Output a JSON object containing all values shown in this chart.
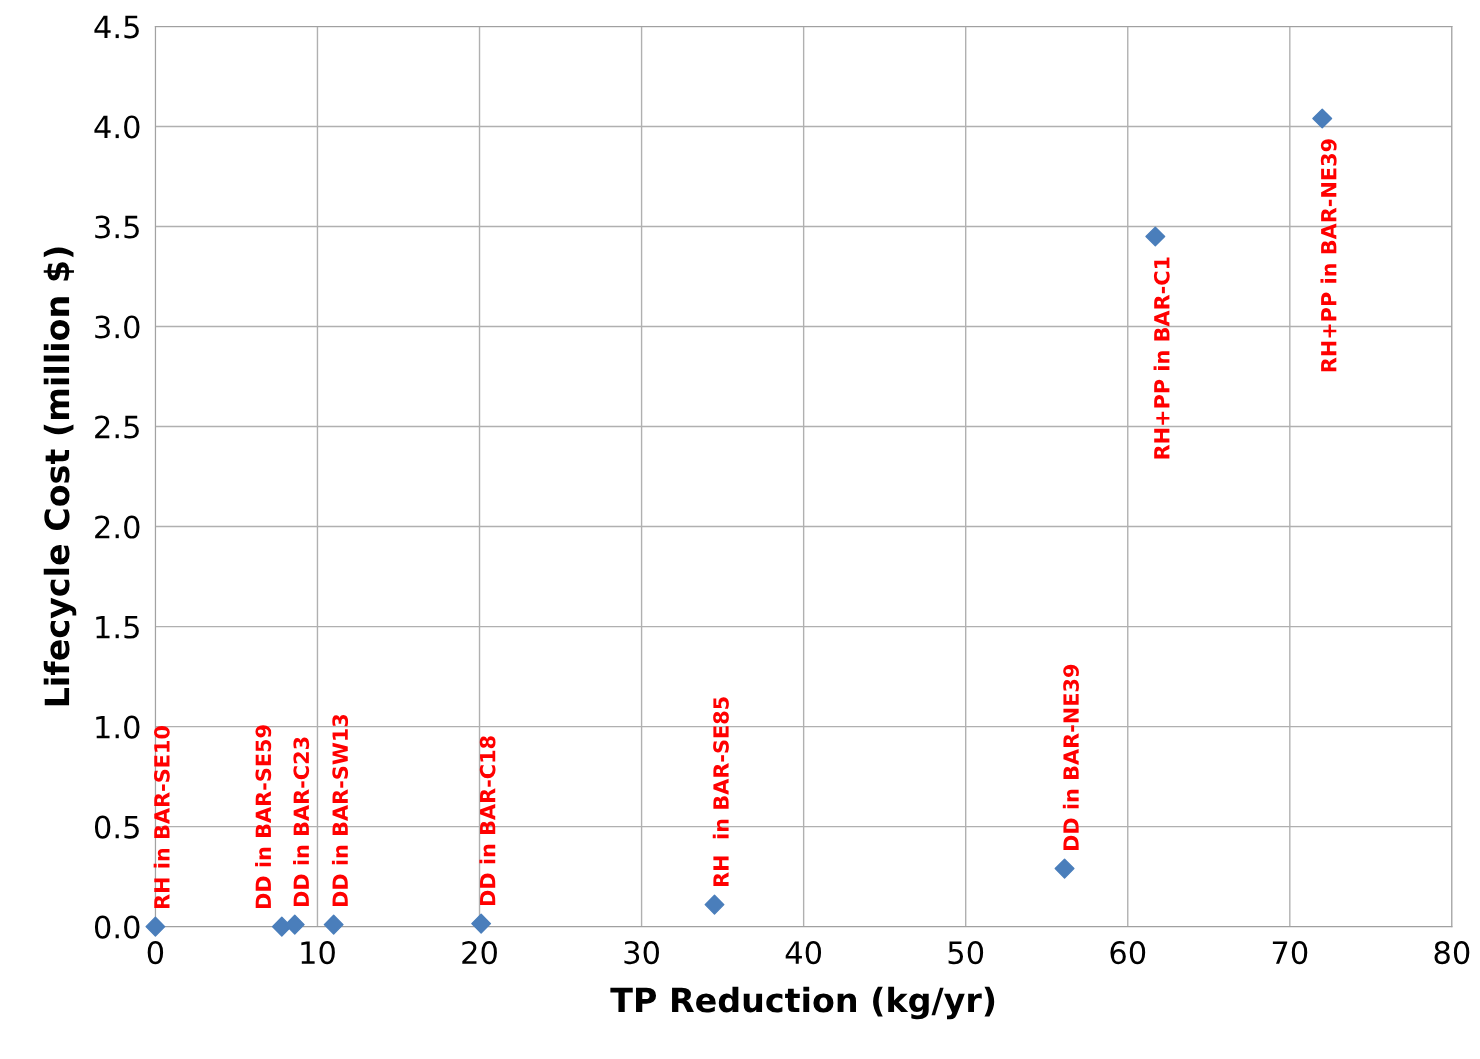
{
  "chart_data": {
    "type": "scatter",
    "xlabel": "TP Reduction (kg/yr)",
    "ylabel": "Lifecycle Cost (million $)",
    "x": [
      0,
      7.8,
      8.6,
      11.0,
      20.1,
      34.5,
      56.1,
      61.7,
      72.0
    ],
    "series": [
      {
        "color": "#4a7ebb",
        "values": [
          0,
          0,
          0.01,
          0.01,
          0.015,
          0.11,
          0.29,
          3.45,
          4.04
        ]
      }
    ],
    "marker": "diamond",
    "grid": true,
    "legend": false,
    "xlim": [
      0,
      80
    ],
    "xticks": [
      0,
      10,
      20,
      30,
      40,
      50,
      60,
      70,
      80
    ],
    "ylim": [
      0,
      4.5
    ],
    "yticks": [
      {
        "value": 0,
        "label": "0.0"
      },
      {
        "value": 0.5,
        "label": "0.5"
      },
      {
        "value": 1,
        "label": "1.0"
      },
      {
        "value": 1.5,
        "label": "1.5"
      },
      {
        "value": 2,
        "label": "2.0"
      },
      {
        "value": 2.5,
        "label": "2.5"
      },
      {
        "value": 3,
        "label": "3.0"
      },
      {
        "value": 3.5,
        "label": "3.5"
      },
      {
        "value": 4,
        "label": "4.0"
      },
      {
        "value": 4.5,
        "label": "4.5"
      }
    ],
    "annotations": [
      {
        "text": "RH in BAR-SE10",
        "x": 0,
        "y": 0
      },
      {
        "text": "DD in BAR-SE59",
        "x": 7.8,
        "y": 0
      },
      {
        "text": "DD in BAR-C23",
        "x": 8.6,
        "y": 0.01
      },
      {
        "text": "DD in BAR-SW13",
        "x": 11.0,
        "y": 0.01
      },
      {
        "text": "DD in BAR-C18",
        "x": 20.1,
        "y": 0.015
      },
      {
        "text": "RH  in BAR-SE85",
        "x": 34.5,
        "y": 0.11
      },
      {
        "text": "DD in BAR-NE39",
        "x": 56.1,
        "y": 0.29
      },
      {
        "text": "RH+PP in BAR-C1",
        "x": 61.7,
        "y": 3.45
      },
      {
        "text": "RH+PP in BAR-NE39",
        "x": 72.0,
        "y": 4.04
      }
    ]
  }
}
